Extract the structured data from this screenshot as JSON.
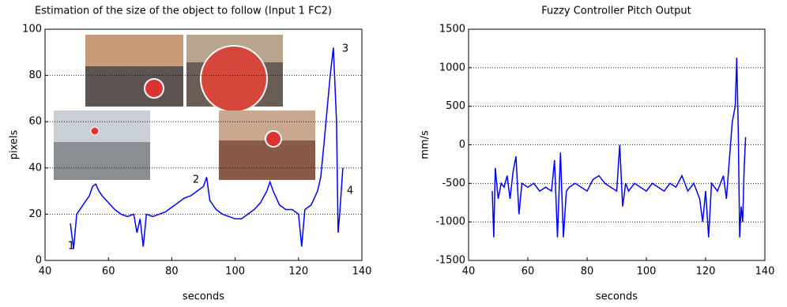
{
  "chart_data": [
    {
      "type": "line",
      "title": "Estimation of the size of the object to follow (Input 1 FC2)",
      "x_label": "seconds",
      "y_label": "pixels",
      "color": "#0000ff",
      "x": [
        48,
        49,
        50,
        52,
        54,
        55,
        56,
        57,
        58,
        60,
        62,
        64,
        66,
        68,
        69,
        70,
        71,
        72,
        74,
        76,
        78,
        80,
        82,
        84,
        86,
        88,
        90,
        91,
        92,
        94,
        96,
        98,
        100,
        102,
        104,
        106,
        108,
        110,
        111,
        112,
        114,
        116,
        118,
        120,
        121,
        122,
        124,
        126,
        127,
        128,
        129,
        130,
        131,
        132,
        132.5,
        133,
        134
      ],
      "values": [
        16,
        5,
        20,
        24,
        28,
        32,
        33,
        30,
        28,
        25,
        22,
        20,
        19,
        20,
        12,
        18,
        6,
        20,
        19,
        20,
        21,
        23,
        25,
        27,
        28,
        30,
        32,
        36,
        26,
        22,
        20,
        19,
        18,
        18,
        20,
        22,
        25,
        30,
        34,
        30,
        24,
        22,
        22,
        20,
        6,
        22,
        24,
        30,
        36,
        50,
        65,
        80,
        92,
        60,
        12,
        20,
        40
      ],
      "xlim": [
        40,
        140
      ],
      "xticks": [
        40,
        60,
        80,
        100,
        120,
        140
      ],
      "ylim": [
        0,
        100
      ],
      "yticks": [
        0,
        20,
        40,
        60,
        80,
        100
      ],
      "grid": true,
      "annotations": [
        "1",
        "2",
        "3",
        "4"
      ]
    },
    {
      "type": "line",
      "title": "Fuzzy Controller Pitch Output",
      "x_label": "seconds",
      "y_label": "mm/s",
      "color": "#0000ff",
      "x": [
        48,
        48.5,
        49,
        50,
        51,
        52,
        53,
        54,
        55,
        56,
        57,
        58,
        60,
        62,
        64,
        66,
        68,
        69,
        70,
        71,
        72,
        73,
        74,
        76,
        78,
        80,
        82,
        84,
        86,
        88,
        90,
        91,
        92,
        93,
        94,
        96,
        98,
        100,
        102,
        104,
        106,
        108,
        110,
        112,
        114,
        116,
        118,
        119,
        120,
        121,
        122,
        124,
        126,
        127,
        128,
        129,
        130,
        130.5,
        131,
        131.5,
        132,
        132.5,
        133,
        133.5
      ],
      "values": [
        -600,
        -1200,
        -300,
        -700,
        -500,
        -550,
        -400,
        -700,
        -350,
        -150,
        -900,
        -500,
        -550,
        -500,
        -600,
        -550,
        -600,
        -200,
        -1200,
        -100,
        -1200,
        -600,
        -550,
        -500,
        -550,
        -600,
        -450,
        -400,
        -500,
        -550,
        -600,
        0,
        -800,
        -500,
        -600,
        -500,
        -550,
        -600,
        -500,
        -550,
        -600,
        -500,
        -550,
        -400,
        -600,
        -500,
        -700,
        -1000,
        -600,
        -1200,
        -500,
        -600,
        -400,
        -700,
        -200,
        300,
        500,
        1130,
        200,
        -1200,
        -800,
        -1000,
        -300,
        100
      ],
      "xlim": [
        40,
        140
      ],
      "xticks": [
        40,
        60,
        80,
        100,
        120,
        140
      ],
      "ylim": [
        -1500,
        1500
      ],
      "yticks": [
        -1500,
        -1000,
        -500,
        0,
        500,
        1000,
        1500
      ],
      "grid": true
    }
  ]
}
